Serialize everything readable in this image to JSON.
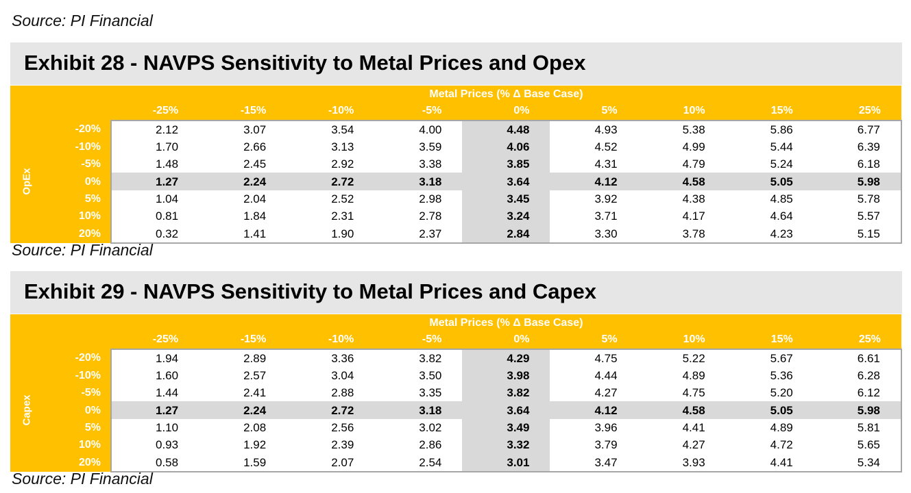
{
  "top_source": "Source: PI Financial",
  "exhibits": [
    {
      "title": "Exhibit 28 - NAVPS Sensitivity to Metal Prices and Opex",
      "x_header": "Metal Prices (% Δ Base Case)",
      "y_axis_label": "OpEx",
      "col_labels": [
        "-25%",
        "-15%",
        "-10%",
        "-5%",
        "0%",
        "5%",
        "10%",
        "15%",
        "25%"
      ],
      "row_labels": [
        "-20%",
        "-10%",
        "-5%",
        "0%",
        "5%",
        "10%",
        "20%"
      ],
      "rows": [
        [
          "2.12",
          "3.07",
          "3.54",
          "4.00",
          "4.48",
          "4.93",
          "5.38",
          "5.86",
          "6.77"
        ],
        [
          "1.70",
          "2.66",
          "3.13",
          "3.59",
          "4.06",
          "4.52",
          "4.99",
          "5.44",
          "6.39"
        ],
        [
          "1.48",
          "2.45",
          "2.92",
          "3.38",
          "3.85",
          "4.31",
          "4.79",
          "5.24",
          "6.18"
        ],
        [
          "1.27",
          "2.24",
          "2.72",
          "3.18",
          "3.64",
          "4.12",
          "4.58",
          "5.05",
          "5.98"
        ],
        [
          "1.04",
          "2.04",
          "2.52",
          "2.98",
          "3.45",
          "3.92",
          "4.38",
          "4.85",
          "5.78"
        ],
        [
          "0.81",
          "1.84",
          "2.31",
          "2.78",
          "3.24",
          "3.71",
          "4.17",
          "4.64",
          "5.57"
        ],
        [
          "0.32",
          "1.41",
          "1.90",
          "2.37",
          "2.84",
          "3.30",
          "3.78",
          "4.23",
          "5.15"
        ]
      ],
      "source": "Source: PI Financial"
    },
    {
      "title": "Exhibit 29 - NAVPS Sensitivity to Metal Prices and Capex",
      "x_header": "Metal Prices (% Δ Base Case)",
      "y_axis_label": "Capex",
      "col_labels": [
        "-25%",
        "-15%",
        "-10%",
        "-5%",
        "0%",
        "5%",
        "10%",
        "15%",
        "25%"
      ],
      "row_labels": [
        "-20%",
        "-10%",
        "-5%",
        "0%",
        "5%",
        "10%",
        "20%"
      ],
      "rows": [
        [
          "1.94",
          "2.89",
          "3.36",
          "3.82",
          "4.29",
          "4.75",
          "5.22",
          "5.67",
          "6.61"
        ],
        [
          "1.60",
          "2.57",
          "3.04",
          "3.50",
          "3.98",
          "4.44",
          "4.89",
          "5.36",
          "6.28"
        ],
        [
          "1.44",
          "2.41",
          "2.88",
          "3.35",
          "3.82",
          "4.27",
          "4.75",
          "5.20",
          "6.12"
        ],
        [
          "1.27",
          "2.24",
          "2.72",
          "3.18",
          "3.64",
          "4.12",
          "4.58",
          "5.05",
          "5.98"
        ],
        [
          "1.10",
          "2.08",
          "2.56",
          "3.02",
          "3.49",
          "3.96",
          "4.41",
          "4.89",
          "5.81"
        ],
        [
          "0.93",
          "1.92",
          "2.39",
          "2.86",
          "3.32",
          "3.79",
          "4.27",
          "4.72",
          "5.65"
        ],
        [
          "0.58",
          "1.59",
          "2.07",
          "2.54",
          "3.01",
          "3.47",
          "3.93",
          "4.41",
          "5.34"
        ]
      ],
      "source": "Source: PI Financial"
    }
  ],
  "colors": {
    "header": "#ffc000",
    "title_bg": "#e6e6e6",
    "highlight": "#d9d9d9",
    "border": "#a6a6a6"
  }
}
